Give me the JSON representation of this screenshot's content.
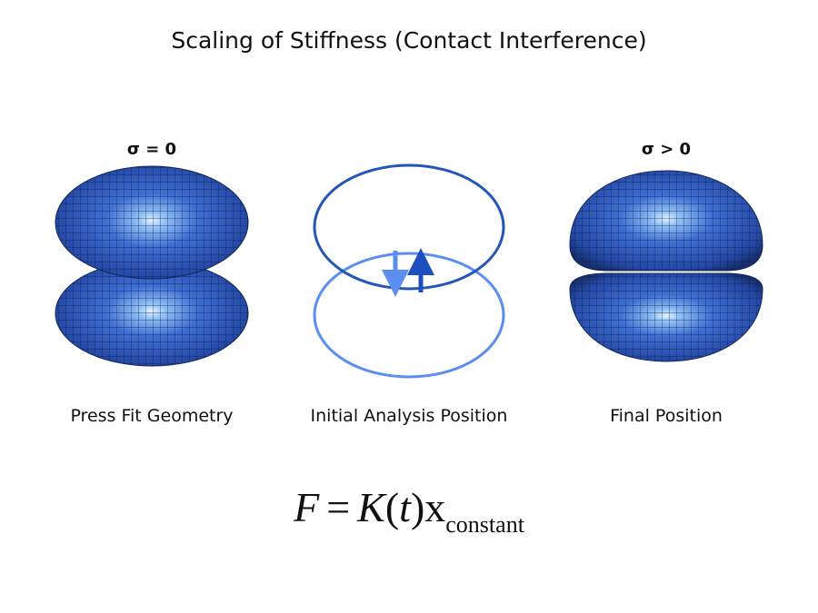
{
  "title": "Scaling of Stiffness (Contact Interference)",
  "panels": [
    {
      "label": "Press Fit Geometry",
      "stress": "σ = 0"
    },
    {
      "label": "Initial Analysis Position"
    },
    {
      "label": "Final Position",
      "stress": "σ > 0"
    }
  ],
  "formula": {
    "parts": [
      "F",
      "=",
      "K",
      "(",
      "t",
      ")",
      "x"
    ],
    "subscript": "constant"
  }
}
